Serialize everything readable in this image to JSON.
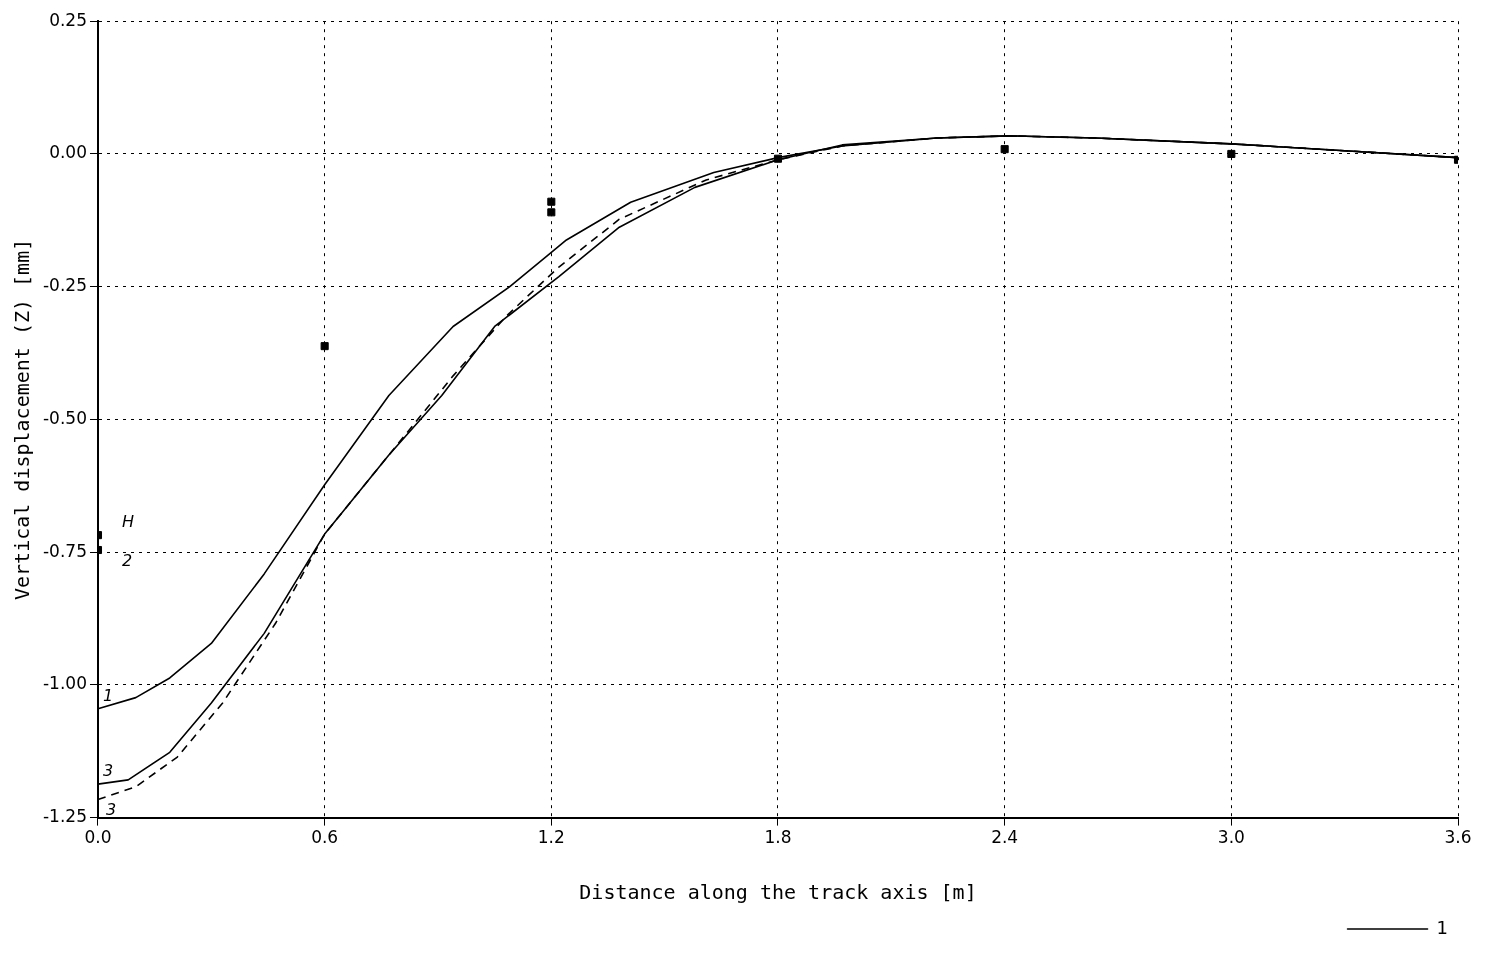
{
  "chart_data": {
    "type": "line",
    "xlabel": "Distance along the track axis [m]",
    "ylabel": "Vertical displacement (Z) [mm]",
    "xlim": [
      0,
      3.6
    ],
    "ylim": [
      -1.25,
      0.25
    ],
    "xticks": [
      {
        "value": 0,
        "label": "0.0"
      },
      {
        "value": 0.6,
        "label": "0.6"
      },
      {
        "value": 1.2,
        "label": "1.2"
      },
      {
        "value": 1.8,
        "label": "1.8"
      },
      {
        "value": 2.4,
        "label": "2.4"
      },
      {
        "value": 3.0,
        "label": "3.0"
      },
      {
        "value": 3.6,
        "label": "3.6"
      }
    ],
    "yticks": [
      {
        "value": 0.25,
        "label": "0.25"
      },
      {
        "value": 0,
        "label": "0.00"
      },
      {
        "value": -0.25,
        "label": "-0.25"
      },
      {
        "value": -0.5,
        "label": "-0.50"
      },
      {
        "value": -0.75,
        "label": "-0.75"
      },
      {
        "value": -1,
        "label": "-1.00"
      },
      {
        "value": -1.25,
        "label": "-1.25"
      }
    ],
    "grid": true,
    "legend": "bottom right",
    "series": [
      {
        "name": "1",
        "color": "#000000",
        "line_style": "solid",
        "x": [
          0,
          0.1,
          0.19,
          0.3,
          0.44,
          0.6,
          0.77,
          0.94,
          1.09,
          1.24,
          1.41,
          1.63,
          1.8,
          1.97,
          2.22,
          2.41,
          2.64,
          3.0,
          3.3,
          3.6
        ],
        "values": [
          -1.045,
          -1.024,
          -0.987,
          -0.922,
          -0.791,
          -0.623,
          -0.455,
          -0.325,
          -0.25,
          -0.162,
          -0.091,
          -0.035,
          -0.007,
          0.015,
          0.03,
          0.034,
          0.03,
          0.019,
          0.006,
          -0.007
        ]
      },
      {
        "name": "3",
        "color": "#000000",
        "line_style": "solid",
        "x": [
          0,
          0.08,
          0.19,
          0.3,
          0.44,
          0.6,
          0.77,
          0.91,
          1.05,
          1.22,
          1.38,
          1.58,
          1.8,
          1.97,
          2.22,
          2.41,
          2.64,
          3.0,
          3.3,
          3.6
        ],
        "values": [
          -1.187,
          -1.179,
          -1.127,
          -1.034,
          -0.903,
          -0.716,
          -0.567,
          -0.455,
          -0.325,
          -0.231,
          -0.138,
          -0.063,
          -0.011,
          0.017,
          0.03,
          0.034,
          0.03,
          0.019,
          0.006,
          -0.007
        ]
      },
      {
        "name": "3",
        "color": "#000000",
        "line_style": "dashed",
        "x": [
          0,
          0.1,
          0.21,
          0.33,
          0.47,
          0.6,
          0.77,
          0.94,
          1.08,
          1.22,
          1.38,
          1.61,
          1.8,
          1.97,
          2.22,
          2.41,
          2.64,
          3.0,
          3.3,
          3.6
        ],
        "values": [
          -1.216,
          -1.192,
          -1.136,
          -1.034,
          -0.884,
          -0.716,
          -0.567,
          -0.418,
          -0.306,
          -0.213,
          -0.123,
          -0.049,
          -0.011,
          0.015,
          0.03,
          0.034,
          0.03,
          0.019,
          0.006,
          -0.007
        ]
      },
      {
        "type": "scatter",
        "color": "#000000",
        "x": [
          0,
          0.6,
          1.2,
          1.8,
          2.4,
          3.0,
          3.6
        ],
        "values": [
          -0.718,
          -0.362,
          -0.09,
          -0.009,
          0.009,
          0.0,
          -0.011
        ]
      },
      {
        "type": "scatter",
        "color": "#000000",
        "x": [
          0,
          1.2
        ],
        "values": [
          -0.746,
          -0.11
        ]
      }
    ],
    "annotations": [
      {
        "text": "H",
        "x": 0,
        "y": -0.718
      },
      {
        "text": "2",
        "x": 0,
        "y": -0.746
      }
    ]
  }
}
